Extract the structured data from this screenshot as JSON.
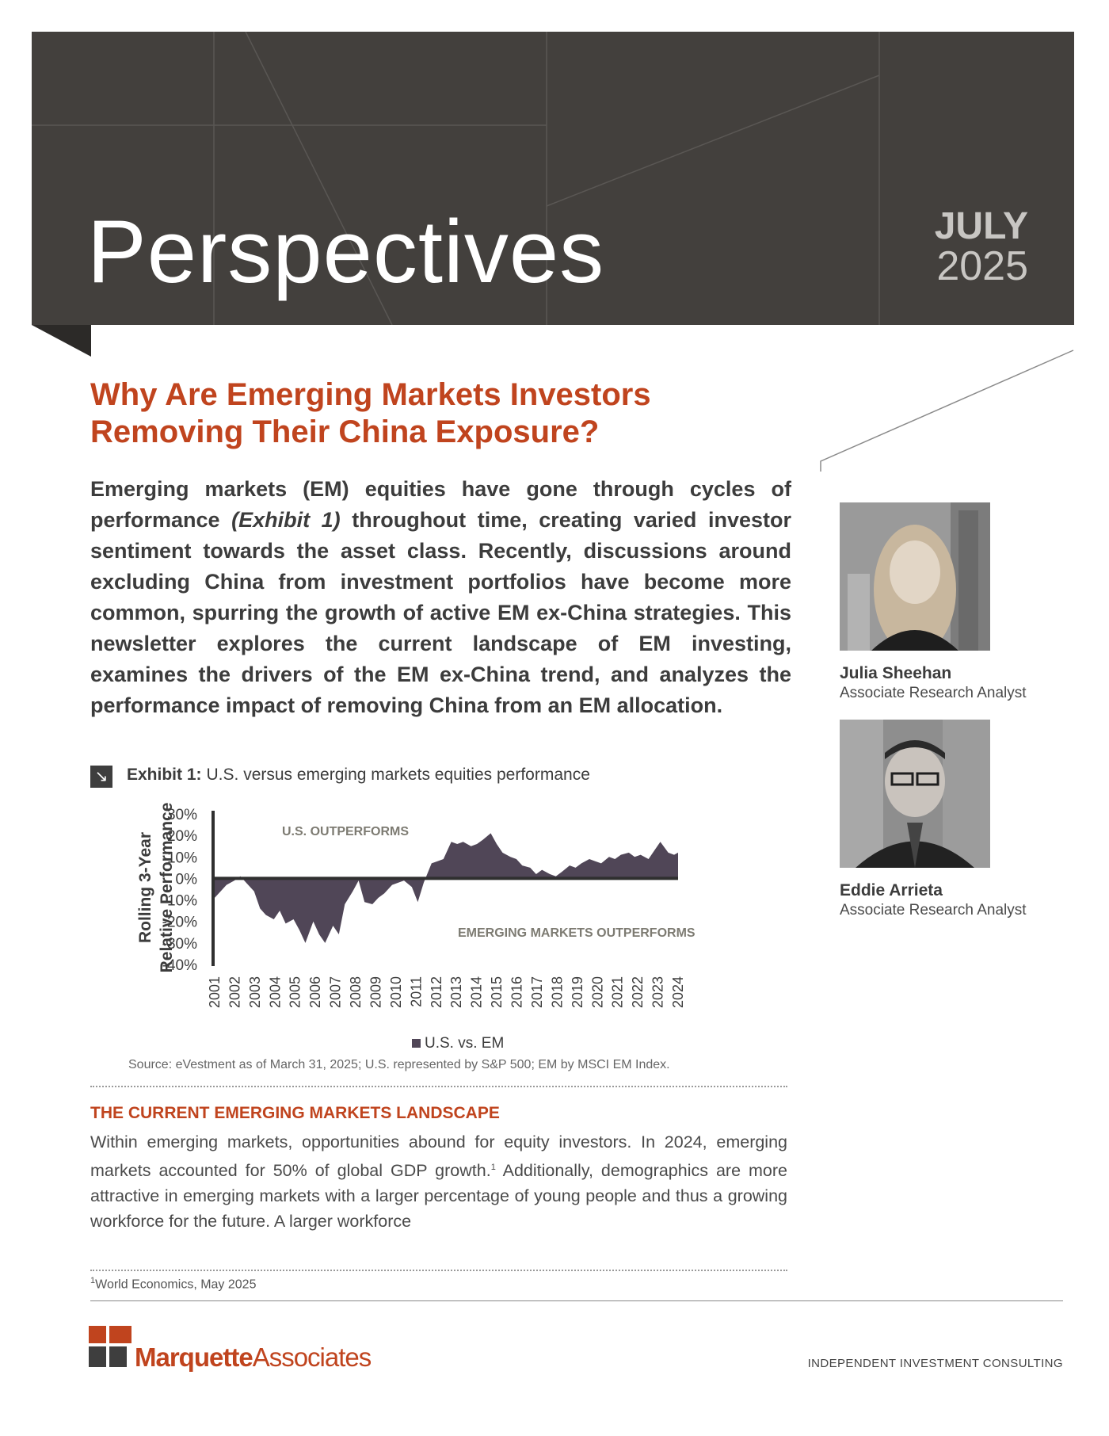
{
  "banner": {
    "title": "Perspectives",
    "month": "JULY",
    "year": "2025"
  },
  "article": {
    "headline": "Why Are Emerging Markets Investors Removing Their China Exposure?",
    "lead_before": "Emerging markets (EM) equities have gone through cycles of performance ",
    "lead_em": "(Exhibit 1)",
    "lead_after": " throughout time, creating varied investor sentiment towards the asset class. Recently, discussions around excluding China from investment portfolios have become more common, spurring the growth of active EM ex-China strategies. This newsletter explores the current landscape of EM investing, examines the drivers of the EM ex-China trend, and analyzes the performance impact of removing China from an EM allocation."
  },
  "authors": [
    {
      "name": "Julia Sheehan",
      "role": "Associate Research Analyst"
    },
    {
      "name": "Eddie Arrieta",
      "role": "Associate Research Analyst"
    }
  ],
  "exhibit": {
    "icon": "arrow-down-right-icon",
    "glyph": "↘",
    "label": "Exhibit 1:",
    "caption": "U.S. versus emerging markets equities performance",
    "source": "Source: eVestment as of March 31, 2025; U.S. represented by S&P 500; EM  by MSCI EM Index."
  },
  "chart_data": {
    "type": "area",
    "title": "",
    "ylabel": "Rolling 3-Year Relative Performance",
    "ylabel_lines": [
      "Rolling 3-Year",
      "Relative Performance"
    ],
    "ylim": [
      -0.4,
      0.3
    ],
    "yticks": [
      "30%",
      "20%",
      "10%",
      "0%",
      "-10%",
      "-20%",
      "-30%",
      "-40%"
    ],
    "xticks": [
      "2001",
      "2002",
      "2003",
      "2004",
      "2005",
      "2006",
      "2007",
      "2008",
      "2009",
      "2010",
      "2011",
      "2012",
      "2013",
      "2014",
      "2015",
      "2016",
      "2017",
      "2018",
      "2019",
      "2020",
      "2021",
      "2022",
      "2023",
      "2024"
    ],
    "annotations": {
      "top": "U.S. OUTPERFORMS",
      "bottom": "EMERGING MARKETS OUTPERFORMS"
    },
    "legend": "U.S. vs. EM",
    "legend_position": "bottom",
    "series": [
      {
        "name": "U.S. vs. EM",
        "color": "#504657",
        "x": [
          2001.0,
          2001.3,
          2001.6,
          2002.0,
          2002.3,
          2002.6,
          2003.0,
          2003.3,
          2003.6,
          2004.0,
          2004.3,
          2004.6,
          2005.0,
          2005.3,
          2005.6,
          2006.0,
          2006.3,
          2006.6,
          2007.0,
          2007.3,
          2007.6,
          2008.0,
          2008.3,
          2008.6,
          2009.0,
          2009.3,
          2009.6,
          2010.0,
          2010.3,
          2010.6,
          2011.0,
          2011.3,
          2011.6,
          2012.0,
          2012.3,
          2012.6,
          2013.0,
          2013.3,
          2013.6,
          2014.0,
          2014.3,
          2014.6,
          2015.0,
          2015.3,
          2015.6,
          2016.0,
          2016.3,
          2016.6,
          2017.0,
          2017.3,
          2017.6,
          2018.0,
          2018.3,
          2018.6,
          2019.0,
          2019.3,
          2019.6,
          2020.0,
          2020.3,
          2020.6,
          2021.0,
          2021.3,
          2021.6,
          2022.0,
          2022.3,
          2022.6,
          2023.0,
          2023.3,
          2023.6,
          2024.0,
          2024.3,
          2024.5
        ],
        "y": [
          -0.09,
          -0.06,
          -0.03,
          -0.01,
          0.01,
          -0.02,
          -0.06,
          -0.14,
          -0.17,
          -0.19,
          -0.15,
          -0.21,
          -0.19,
          -0.24,
          -0.3,
          -0.2,
          -0.26,
          -0.3,
          -0.22,
          -0.26,
          -0.12,
          -0.06,
          -0.01,
          -0.11,
          -0.12,
          -0.09,
          -0.07,
          -0.03,
          -0.02,
          -0.01,
          -0.04,
          -0.11,
          -0.02,
          0.07,
          0.08,
          0.09,
          0.17,
          0.16,
          0.17,
          0.15,
          0.16,
          0.18,
          0.21,
          0.16,
          0.12,
          0.1,
          0.09,
          0.06,
          0.05,
          0.02,
          0.04,
          0.02,
          0.01,
          0.03,
          0.06,
          0.05,
          0.07,
          0.09,
          0.08,
          0.07,
          0.1,
          0.09,
          0.11,
          0.12,
          0.1,
          0.11,
          0.09,
          0.13,
          0.17,
          0.12,
          0.11,
          0.12
        ]
      }
    ]
  },
  "section": {
    "heading": "THE CURRENT EMERGING MARKETS LANDSCAPE",
    "body_a": "Within emerging markets, opportunities abound for equity investors. In 2024, emerging markets accounted for 50% of global GDP growth.",
    "sup": "1",
    "body_b": " Additionally, demographics are more attractive in emerging markets with a larger percentage of young people and thus a growing workforce for the future. A larger workforce"
  },
  "footnote": {
    "mark": "1",
    "text": "World Economics, May 2025"
  },
  "footer": {
    "brand_bold": "Marquette",
    "brand_light": "Associates",
    "tagline": "INDEPENDENT INVESTMENT CONSULTING"
  },
  "colors": {
    "accent": "#c0441e",
    "banner": "#43403d",
    "series": "#504657"
  }
}
